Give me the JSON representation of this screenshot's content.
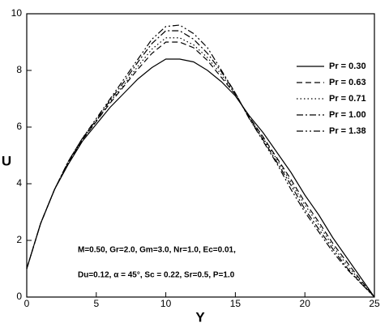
{
  "chart_data": {
    "type": "line",
    "x_label": "Y",
    "y_label": "U",
    "x": [
      0,
      1,
      2,
      3,
      4,
      5,
      6,
      7,
      8,
      9,
      10,
      11,
      12,
      13,
      14,
      15,
      16,
      17,
      18,
      19,
      20,
      21,
      22,
      23,
      24,
      25
    ],
    "series": [
      {
        "name": "Pr = 0.30",
        "color": "#000000",
        "values": [
          1.0,
          2.6,
          3.8,
          4.7,
          5.5,
          6.1,
          6.7,
          7.2,
          7.7,
          8.1,
          8.4,
          8.4,
          8.3,
          8.0,
          7.6,
          7.1,
          6.4,
          5.8,
          5.1,
          4.4,
          3.6,
          2.9,
          2.1,
          1.4,
          0.7,
          0
        ]
      },
      {
        "name": "Pr = 0.63",
        "color": "#000000",
        "values": [
          1.0,
          2.6,
          3.8,
          4.75,
          5.55,
          6.2,
          6.85,
          7.45,
          8.05,
          8.6,
          9.0,
          9.0,
          8.8,
          8.35,
          7.75,
          7.15,
          6.35,
          5.65,
          4.9,
          4.15,
          3.35,
          2.65,
          1.9,
          1.25,
          0.6,
          0
        ]
      },
      {
        "name": "Pr = 0.71",
        "color": "#000000",
        "values": [
          1.0,
          2.6,
          3.8,
          4.75,
          5.55,
          6.2,
          6.9,
          7.5,
          8.15,
          8.75,
          9.15,
          9.15,
          8.9,
          8.45,
          7.85,
          7.15,
          6.35,
          5.6,
          4.85,
          4.05,
          3.25,
          2.55,
          1.8,
          1.15,
          0.55,
          0
        ]
      },
      {
        "name": "Pr = 1.00",
        "color": "#000000",
        "values": [
          1.0,
          2.6,
          3.8,
          4.8,
          5.6,
          6.25,
          6.95,
          7.6,
          8.3,
          8.95,
          9.4,
          9.4,
          9.1,
          8.6,
          7.95,
          7.2,
          6.3,
          5.55,
          4.75,
          3.95,
          3.1,
          2.4,
          1.7,
          1.05,
          0.5,
          0
        ]
      },
      {
        "name": "Pr = 1.38",
        "color": "#000000",
        "values": [
          1.0,
          2.6,
          3.8,
          4.8,
          5.6,
          6.3,
          7.0,
          7.7,
          8.4,
          9.1,
          9.55,
          9.6,
          9.3,
          8.8,
          8.0,
          7.2,
          6.3,
          5.5,
          4.7,
          3.8,
          3.0,
          2.3,
          1.6,
          1.0,
          0.5,
          0
        ]
      }
    ],
    "xlim": [
      0,
      25
    ],
    "xticks": [
      0,
      5,
      10,
      15,
      20,
      25
    ],
    "ylim": [
      0,
      10
    ],
    "yticks": [
      0,
      2,
      4,
      6,
      8,
      10
    ],
    "annotations": [
      "M=0.50, Gr=2.0, Gm=3.0, Nr=1.0, Ec=0.01,",
      "Du=0.12, α = 45°, Sc = 0.22, Sr=0.5, P=1.0"
    ],
    "legend": "upper right"
  }
}
